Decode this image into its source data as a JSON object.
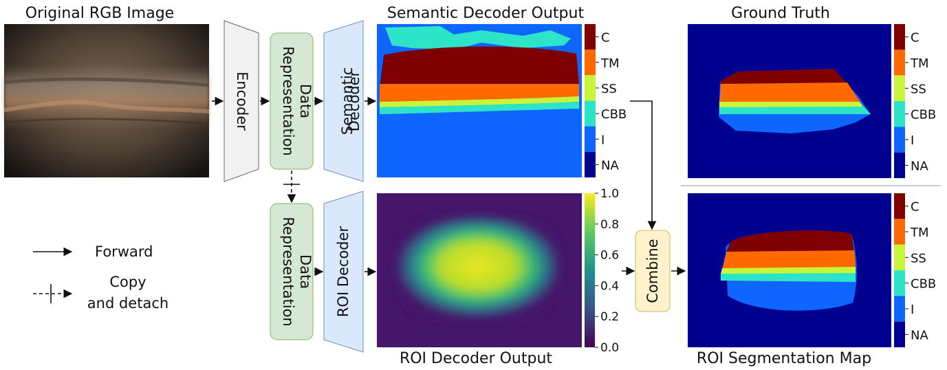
{
  "panels": {
    "original_title": "Original RGB Image",
    "semantic_title": "Semantic Decoder Output",
    "gt_title": "Ground Truth",
    "roi_output_title": "ROI Decoder Output",
    "roi_seg_title": "ROI Segmentation Map"
  },
  "blocks": {
    "encoder": "Encoder",
    "data_rep_top": [
      "Data",
      "Representation"
    ],
    "semantic_decoder": [
      "Semantic",
      "Decoder"
    ],
    "data_rep_bottom": [
      "Data",
      "Representation"
    ],
    "roi_decoder": "ROI Decoder",
    "combine": "Combine"
  },
  "class_legend": {
    "labels": [
      "C",
      "TM",
      "SS",
      "CBB",
      "I",
      "NA"
    ],
    "colors": [
      "#7f0000",
      "#ff6a00",
      "#c8f43c",
      "#2de3c8",
      "#0f66ff",
      "#00008f"
    ]
  },
  "roi_colorbar": {
    "ticks": [
      "1.0",
      "0.8",
      "0.6",
      "0.4",
      "0.2",
      "0.0"
    ]
  },
  "legend": {
    "forward": "Forward",
    "copy": [
      "Copy",
      "and detach"
    ]
  },
  "colors": {
    "encoder_fill": "#f2f2f2",
    "data_rep_fill": "#d5e8d4",
    "data_rep_border": "#82b366",
    "decoder_fill": "#dae8fc",
    "decoder_border": "#6c8ebf",
    "combine_fill": "#fff2cc",
    "combine_border": "#d6b656"
  }
}
